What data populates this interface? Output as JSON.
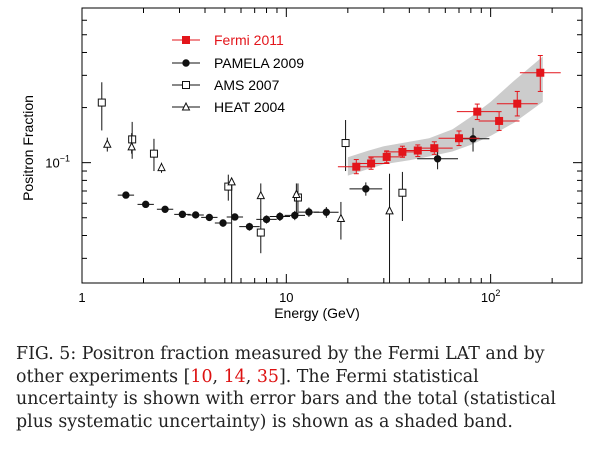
{
  "chart_data": {
    "type": "scatter",
    "xlabel": "Energy (GeV)",
    "ylabel": "Positron Fraction",
    "x_scale": "log",
    "y_scale": "log",
    "xlim": [
      1,
      280
    ],
    "ylim": [
      0.022,
      0.7
    ],
    "x_ticks": [
      {
        "value": 1,
        "label": "1"
      },
      {
        "value": 10,
        "label": "10"
      },
      {
        "value": 100,
        "label": "10",
        "sup": "2"
      }
    ],
    "y_ticks": [
      {
        "value": 0.1,
        "label": "10",
        "sup": "−1"
      }
    ],
    "legend_position": "top-left",
    "band": {
      "name": "total uncertainty",
      "x": [
        20,
        25,
        30,
        40,
        50,
        65,
        80,
        100,
        130,
        180
      ],
      "lower": [
        0.085,
        0.092,
        0.098,
        0.103,
        0.108,
        0.115,
        0.125,
        0.14,
        0.165,
        0.215
      ],
      "upper": [
        0.107,
        0.116,
        0.123,
        0.13,
        0.136,
        0.152,
        0.178,
        0.215,
        0.28,
        0.38
      ]
    },
    "series": [
      {
        "name": "Fermi 2011",
        "marker": "square-filled",
        "color": "#e3151b",
        "x": [
          22,
          26,
          31,
          37,
          44,
          53,
          70,
          86,
          110,
          135,
          175
        ],
        "y": [
          0.095,
          0.099,
          0.1075,
          0.1145,
          0.1165,
          0.12,
          0.136,
          0.19,
          0.169,
          0.21,
          0.31
        ],
        "xerr": [
          0.09,
          0.09,
          0.09,
          0.09,
          0.09,
          0.09,
          0.1,
          0.1,
          0.1,
          0.1,
          0.1
        ],
        "y_lo": [
          0.087,
          0.092,
          0.1,
          0.107,
          0.108,
          0.111,
          0.124,
          0.172,
          0.15,
          0.18,
          0.245
        ],
        "y_hi": [
          0.104,
          0.106,
          0.116,
          0.123,
          0.125,
          0.13,
          0.149,
          0.209,
          0.19,
          0.245,
          0.385
        ]
      },
      {
        "name": "PAMELA 2009",
        "marker": "circle-filled",
        "color": "#111111",
        "x": [
          1.64,
          2.05,
          2.55,
          3.1,
          3.6,
          4.2,
          4.9,
          5.6,
          6.6,
          8.0,
          9.3,
          11.0,
          12.9,
          15.7,
          24.5,
          55.0,
          82.0
        ],
        "y": [
          0.0665,
          0.0592,
          0.0556,
          0.0522,
          0.0518,
          0.0502,
          0.0468,
          0.0505,
          0.0447,
          0.049,
          0.0508,
          0.0515,
          0.0537,
          0.0536,
          0.0719,
          0.105,
          0.135
        ],
        "xerr": [
          0.04,
          0.04,
          0.04,
          0.04,
          0.04,
          0.04,
          0.04,
          0.04,
          0.05,
          0.05,
          0.05,
          0.05,
          0.05,
          0.06,
          0.08,
          0.1,
          0.08
        ],
        "y_lo": [
          0.064,
          0.057,
          0.0535,
          0.05,
          0.0496,
          0.048,
          0.0446,
          0.0483,
          0.0425,
          0.0465,
          0.048,
          0.0485,
          0.0505,
          0.05,
          0.066,
          0.092,
          0.115
        ],
        "y_hi": [
          0.069,
          0.0614,
          0.0578,
          0.0544,
          0.054,
          0.0524,
          0.049,
          0.0527,
          0.0469,
          0.0515,
          0.0536,
          0.0545,
          0.0569,
          0.0572,
          0.078,
          0.119,
          0.155
        ]
      },
      {
        "name": "AMS 2007",
        "marker": "square-open",
        "color": "#111111",
        "x": [
          1.25,
          1.76,
          2.25,
          5.2,
          7.5,
          11.4,
          19.5,
          37.0
        ],
        "y": [
          0.213,
          0.134,
          0.112,
          0.074,
          0.0415,
          0.0645,
          0.128,
          0.0685
        ],
        "xerr": [
          0,
          0,
          0,
          0,
          0,
          0,
          0,
          0
        ],
        "y_lo": [
          0.15,
          0.105,
          0.09,
          0.062,
          0.032,
          0.052,
          0.09,
          0.048
        ],
        "y_hi": [
          0.275,
          0.167,
          0.135,
          0.086,
          0.052,
          0.077,
          0.171,
          0.089
        ]
      },
      {
        "name": "HEAT 2004",
        "marker": "triangle-open",
        "color": "#111111",
        "x": [
          1.33,
          1.75,
          2.45,
          5.4,
          7.5,
          11.2,
          18.5,
          32.0
        ],
        "y": [
          0.126,
          0.122,
          0.094,
          0.0785,
          0.066,
          0.067,
          0.0495,
          0.0545
        ],
        "xerr": [
          0,
          0,
          0,
          0,
          0,
          0,
          0,
          0
        ],
        "y_lo": [
          0.115,
          0.112,
          0.088,
          0.022,
          0.052,
          0.052,
          0.038,
          0.022
        ],
        "y_hi": [
          0.137,
          0.145,
          0.1,
          0.082,
          0.077,
          0.077,
          0.061,
          0.087
        ]
      }
    ]
  },
  "caption": {
    "lead": "FIG. 5: Positron fraction measured by the Fermi LAT and by other experiments [",
    "ref1": "10",
    "sep1": ", ",
    "ref2": "14",
    "sep2": ", ",
    "ref3": "35",
    "tail": "].  The Fermi statistical uncertainty is shown with error bars and the total (statistical plus systematic uncertainty) is shown as a shaded band."
  }
}
